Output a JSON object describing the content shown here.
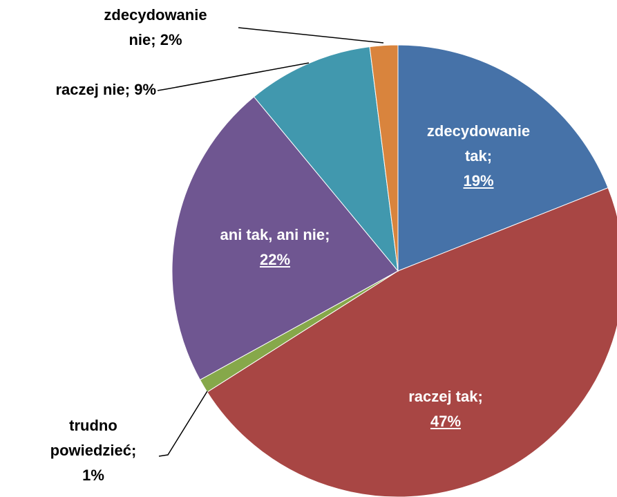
{
  "chart_data": {
    "type": "pie",
    "categories": [
      "zdecydowanie tak",
      "raczej tak",
      "trudno powiedzieć",
      "ani tak, ani nie",
      "raczej nie",
      "zdecydowanie nie"
    ],
    "values": [
      19,
      47,
      1,
      22,
      9,
      2
    ],
    "value_labels": [
      "19%",
      "47%",
      "1%",
      "22%",
      "9%",
      "2%"
    ],
    "label_separator": "; ",
    "colors": [
      "#4672a8",
      "#a84644",
      "#86a84a",
      "#6f5691",
      "#4198ae",
      "#d9843d"
    ]
  }
}
